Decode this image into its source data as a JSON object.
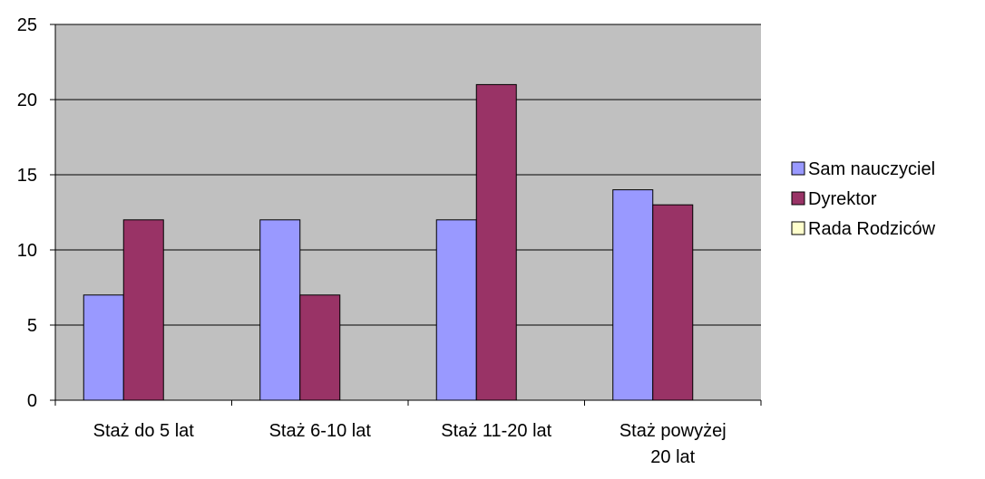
{
  "chart_data": {
    "type": "bar",
    "categories": [
      [
        "Staż do 5 lat"
      ],
      [
        "Staż 6-10 lat"
      ],
      [
        "Staż 11-20 lat"
      ],
      [
        "Staż powyżej",
        "20 lat"
      ]
    ],
    "series": [
      {
        "name": "Sam nauczyciel",
        "values": [
          7,
          12,
          12,
          14
        ],
        "color": "#9999ff"
      },
      {
        "name": "Dyrektor",
        "values": [
          12,
          7,
          21,
          13
        ],
        "color": "#993366"
      },
      {
        "name": "Rada Rodziców",
        "values": [
          0,
          0,
          0,
          0
        ],
        "color": "#ffffcc"
      }
    ],
    "ylim": [
      0,
      25
    ],
    "yticks": [
      0,
      5,
      10,
      15,
      20,
      25
    ],
    "grid": true,
    "plot_background": "#c0c0c0",
    "legend_position": "right"
  }
}
